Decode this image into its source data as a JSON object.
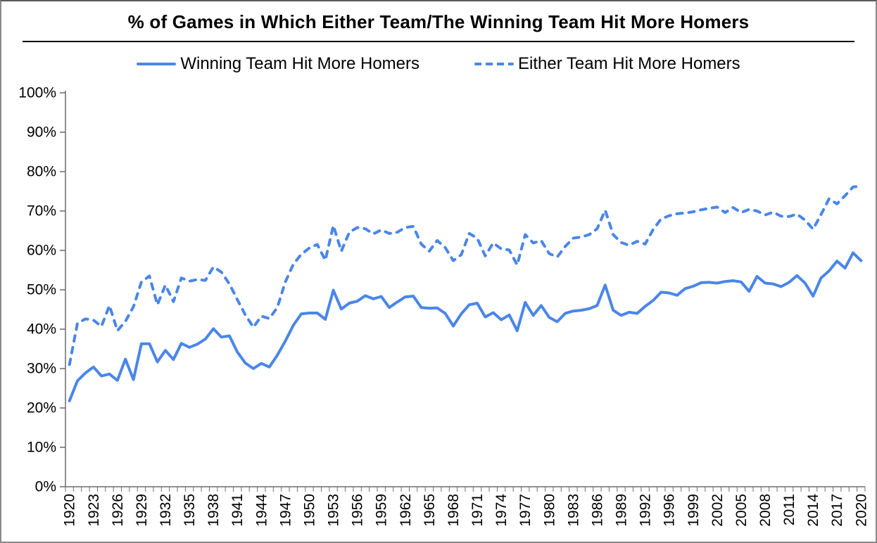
{
  "title": "% of Games in Which Either Team/The Winning Team Hit More Homers",
  "legend": {
    "items": [
      {
        "label": "Winning Team Hit More Homers",
        "style": "solid"
      },
      {
        "label": "Either Team Hit More Homers",
        "style": "dashed"
      }
    ],
    "position": "top"
  },
  "colors": {
    "line_blue": "#4a86e8",
    "axis": "#6b6b6b",
    "text": "#000000",
    "background": "#ffffff",
    "frame_border": "#8a8a8a"
  },
  "axes": {
    "y_tick_labels": [
      "0%",
      "10%",
      "20%",
      "30%",
      "40%",
      "50%",
      "60%",
      "70%",
      "80%",
      "90%",
      "100%"
    ],
    "x_tick_labels": [
      "1920",
      "1923",
      "1926",
      "1929",
      "1932",
      "1935",
      "1938",
      "1941",
      "1944",
      "1947",
      "1950",
      "1953",
      "1956",
      "1959",
      "1962",
      "1965",
      "1968",
      "1971",
      "1974",
      "1977",
      "1980",
      "1983",
      "1986",
      "1989",
      "1992",
      "1996",
      "1999",
      "2002",
      "2005",
      "2008",
      "2011",
      "2014",
      "2017",
      "2020"
    ],
    "x_label_every_n_categories": 3,
    "grid": false
  },
  "chart_data": {
    "type": "line",
    "title": "% of Games in Which Either Team/The Winning Team Hit More Homers",
    "xlabel": "",
    "ylabel": "",
    "ylim": [
      0,
      100
    ],
    "y_unit": "percent",
    "grid": false,
    "legend_position": "top",
    "note_missing_year": "1994 season absent from x axis (labels jump 1992 to 1996)",
    "x": [
      1920,
      1921,
      1922,
      1923,
      1924,
      1925,
      1926,
      1927,
      1928,
      1929,
      1930,
      1931,
      1932,
      1933,
      1934,
      1935,
      1936,
      1937,
      1938,
      1939,
      1940,
      1941,
      1942,
      1943,
      1944,
      1945,
      1946,
      1947,
      1948,
      1949,
      1950,
      1951,
      1952,
      1953,
      1954,
      1955,
      1956,
      1957,
      1958,
      1959,
      1960,
      1961,
      1962,
      1963,
      1964,
      1965,
      1966,
      1967,
      1968,
      1969,
      1970,
      1971,
      1972,
      1973,
      1974,
      1975,
      1976,
      1977,
      1978,
      1979,
      1980,
      1981,
      1982,
      1983,
      1984,
      1985,
      1986,
      1987,
      1988,
      1989,
      1990,
      1991,
      1992,
      1993,
      1995,
      1996,
      1997,
      1998,
      1999,
      2000,
      2001,
      2002,
      2003,
      2004,
      2005,
      2006,
      2007,
      2008,
      2009,
      2010,
      2011,
      2012,
      2013,
      2014,
      2015,
      2016,
      2017,
      2018,
      2019,
      2020
    ],
    "series": [
      {
        "name": "Winning Team Hit More Homers",
        "style": "solid",
        "values": [
          21.8,
          26.9,
          28.9,
          30.4,
          28.1,
          28.6,
          27.0,
          32.4,
          27.2,
          36.3,
          36.3,
          31.7,
          34.6,
          32.3,
          36.4,
          35.4,
          36.2,
          37.5,
          40.1,
          38.0,
          38.3,
          34.2,
          31.4,
          30.0,
          31.3,
          30.4,
          33.4,
          37.0,
          41.0,
          43.9,
          44.1,
          44.1,
          42.5,
          49.9,
          45.1,
          46.6,
          47.1,
          48.5,
          47.7,
          48.3,
          45.5,
          46.9,
          48.2,
          48.4,
          45.5,
          45.3,
          45.4,
          44.0,
          40.8,
          43.9,
          46.2,
          46.6,
          43.1,
          44.2,
          42.4,
          43.6,
          39.6,
          46.8,
          43.5,
          46.0,
          43.0,
          41.9,
          44.0,
          44.6,
          44.8,
          45.2,
          46.0,
          51.2,
          44.8,
          43.5,
          44.3,
          44.0,
          45.8,
          47.3,
          49.4,
          49.2,
          48.6,
          50.3,
          50.9,
          51.8,
          51.9,
          51.7,
          52.1,
          52.3,
          52.0,
          49.6,
          53.4,
          51.7,
          51.5,
          50.8,
          51.9,
          53.6,
          51.7,
          48.4,
          53.0,
          54.8,
          57.3,
          55.5,
          59.4,
          57.4
        ]
      },
      {
        "name": "Either Team Hit More Homers",
        "style": "dashed",
        "values": [
          31.0,
          41.5,
          42.6,
          42.3,
          40.7,
          46.0,
          39.6,
          42.0,
          45.7,
          52.0,
          53.5,
          46.2,
          51.2,
          47.0,
          53.0,
          52.2,
          52.6,
          52.4,
          55.8,
          54.5,
          51.5,
          47.5,
          43.6,
          40.5,
          43.3,
          42.7,
          45.5,
          52.0,
          56.5,
          59.0,
          60.6,
          61.5,
          57.5,
          66.3,
          59.8,
          64.6,
          65.8,
          65.5,
          64.2,
          65.2,
          64.3,
          64.6,
          65.8,
          66.1,
          61.6,
          59.8,
          62.5,
          60.7,
          57.4,
          58.9,
          64.3,
          63.1,
          58.6,
          61.9,
          60.4,
          60.1,
          56.3,
          64.0,
          61.9,
          62.5,
          59.2,
          58.3,
          61.0,
          63.1,
          63.4,
          64.0,
          65.5,
          70.2,
          64.0,
          62.0,
          61.3,
          62.3,
          61.6,
          65.3,
          68.0,
          68.8,
          69.3,
          69.5,
          69.8,
          70.3,
          70.7,
          71.0,
          69.6,
          70.9,
          69.6,
          70.4,
          70.0,
          69.0,
          69.7,
          68.7,
          68.6,
          69.2,
          67.7,
          65.4,
          69.1,
          73.1,
          71.8,
          73.9,
          76.1,
          76.3
        ]
      }
    ]
  }
}
